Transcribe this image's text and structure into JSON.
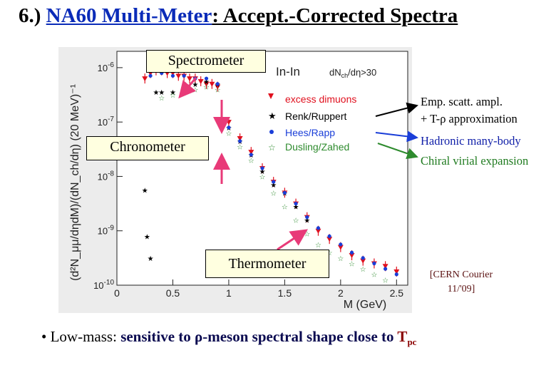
{
  "slide": {
    "title_prefix": "6.) ",
    "title_link": "NA60 Multi-Meter",
    "title_rest": ": Accept.-Corrected Spectra"
  },
  "labels": {
    "spectrometer": "Spectrometer",
    "chronometer": "Chronometer",
    "thermometer": "Thermometer"
  },
  "plot": {
    "system": "In-In",
    "cut": "dN",
    "cut_sub": "ch",
    "cut_rest": "/dη>30",
    "ylabel": "(d²N_μμ/dηdM)/(dN_ch/dη) (20 MeV)⁻¹",
    "xlabel": "M (GeV)",
    "legend": [
      "excess dimuons",
      "Renk/Ruppert",
      "Hees/Rapp",
      "Dusling/Zahed"
    ],
    "colors": {
      "excess": "#e0101e",
      "renk": "#000000",
      "hees": "#1a3ed8",
      "dusling": "#2e8b2e"
    }
  },
  "side_notes": {
    "renk_line1": "Emp. scatt. ampl.",
    "renk_line2": "+ T-ρ approximation",
    "hees": "Hadronic many-body",
    "dusling": "Chiral virial expansion"
  },
  "citation": {
    "line1": "[CERN Courier",
    "line2": "11/'09]"
  },
  "bullet": {
    "mark": "•",
    "lead": "Low-mass: ",
    "bold": "sensitive to ρ-meson spectral shape close to ",
    "tp": "T",
    "tp_sub": "pc"
  },
  "chart_data": {
    "type": "scatter",
    "xlabel": "M (GeV)",
    "ylabel": "(d²N_μμ/dηdM)/(dN_ch/dη) (20 MeV)⁻¹",
    "x_ticks": [
      "0",
      "0.5",
      "1",
      "1.5",
      "2",
      "2.5"
    ],
    "y_ticks": [
      "10^-10",
      "10^-9",
      "10^-8",
      "10^-7",
      "10^-6"
    ],
    "xlim": [
      0,
      2.6
    ],
    "ylim_log10": [
      -10,
      -5.7
    ],
    "log_y": true,
    "legend_position": "top-right",
    "series": [
      {
        "name": "excess dimuons",
        "x": [
          0.25,
          0.3,
          0.35,
          0.4,
          0.45,
          0.5,
          0.55,
          0.6,
          0.65,
          0.7,
          0.75,
          0.8,
          0.85,
          0.9,
          1.0,
          1.1,
          1.2,
          1.3,
          1.4,
          1.5,
          1.6,
          1.7,
          1.8,
          1.9,
          2.0,
          2.1,
          2.2,
          2.3,
          2.4,
          2.5
        ],
        "y": [
          -6.2,
          -6.1,
          -6.05,
          -6.05,
          -6.1,
          -6.1,
          -6.15,
          -6.15,
          -6.2,
          -6.2,
          -6.25,
          -6.3,
          -6.3,
          -6.35,
          -7.0,
          -7.3,
          -7.55,
          -7.85,
          -8.1,
          -8.3,
          -8.5,
          -8.75,
          -9.0,
          -9.15,
          -9.3,
          -9.45,
          -9.55,
          -9.6,
          -9.65,
          -9.75
        ]
      },
      {
        "name": "Renk/Ruppert",
        "x": [
          0.25,
          0.27,
          0.3,
          0.35,
          0.4,
          0.5,
          0.6,
          0.7,
          0.8,
          0.9,
          1.0,
          1.1,
          1.2,
          1.3,
          1.4,
          1.5,
          1.6,
          1.7
        ],
        "y": [
          -8.25,
          -9.1,
          -9.5,
          -6.45,
          -6.45,
          -6.45,
          -6.4,
          -6.3,
          -6.25,
          -6.3,
          -7.1,
          -7.35,
          -7.6,
          -7.9,
          -8.15,
          -8.3,
          -8.55,
          -8.8
        ]
      },
      {
        "name": "Hees/Rapp",
        "x": [
          0.3,
          0.4,
          0.5,
          0.6,
          0.7,
          0.8,
          0.9,
          1.0,
          1.1,
          1.2,
          1.3,
          1.4,
          1.5,
          1.6,
          1.7,
          1.8,
          1.9,
          2.0,
          2.1,
          2.2,
          2.3,
          2.4,
          2.5
        ],
        "y": [
          -6.15,
          -6.1,
          -6.15,
          -6.15,
          -6.2,
          -6.2,
          -6.3,
          -7.1,
          -7.35,
          -7.6,
          -7.85,
          -8.1,
          -8.3,
          -8.5,
          -8.75,
          -8.95,
          -9.1,
          -9.25,
          -9.4,
          -9.5,
          -9.6,
          -9.7,
          -9.8
        ]
      },
      {
        "name": "Dusling/Zahed",
        "x": [
          0.4,
          0.5,
          0.6,
          0.7,
          0.8,
          0.9,
          1.0,
          1.1,
          1.2,
          1.3,
          1.4,
          1.5,
          1.6,
          1.7,
          1.8,
          1.9,
          2.0,
          2.1,
          2.2,
          2.3,
          2.4
        ],
        "y": [
          -6.55,
          -6.5,
          -6.45,
          -6.4,
          -6.35,
          -6.4,
          -7.2,
          -7.45,
          -7.7,
          -8.0,
          -8.3,
          -8.55,
          -8.8,
          -9.05,
          -9.25,
          -9.4,
          -9.5,
          -9.6,
          -9.7,
          -9.8,
          -9.9
        ]
      }
    ]
  }
}
